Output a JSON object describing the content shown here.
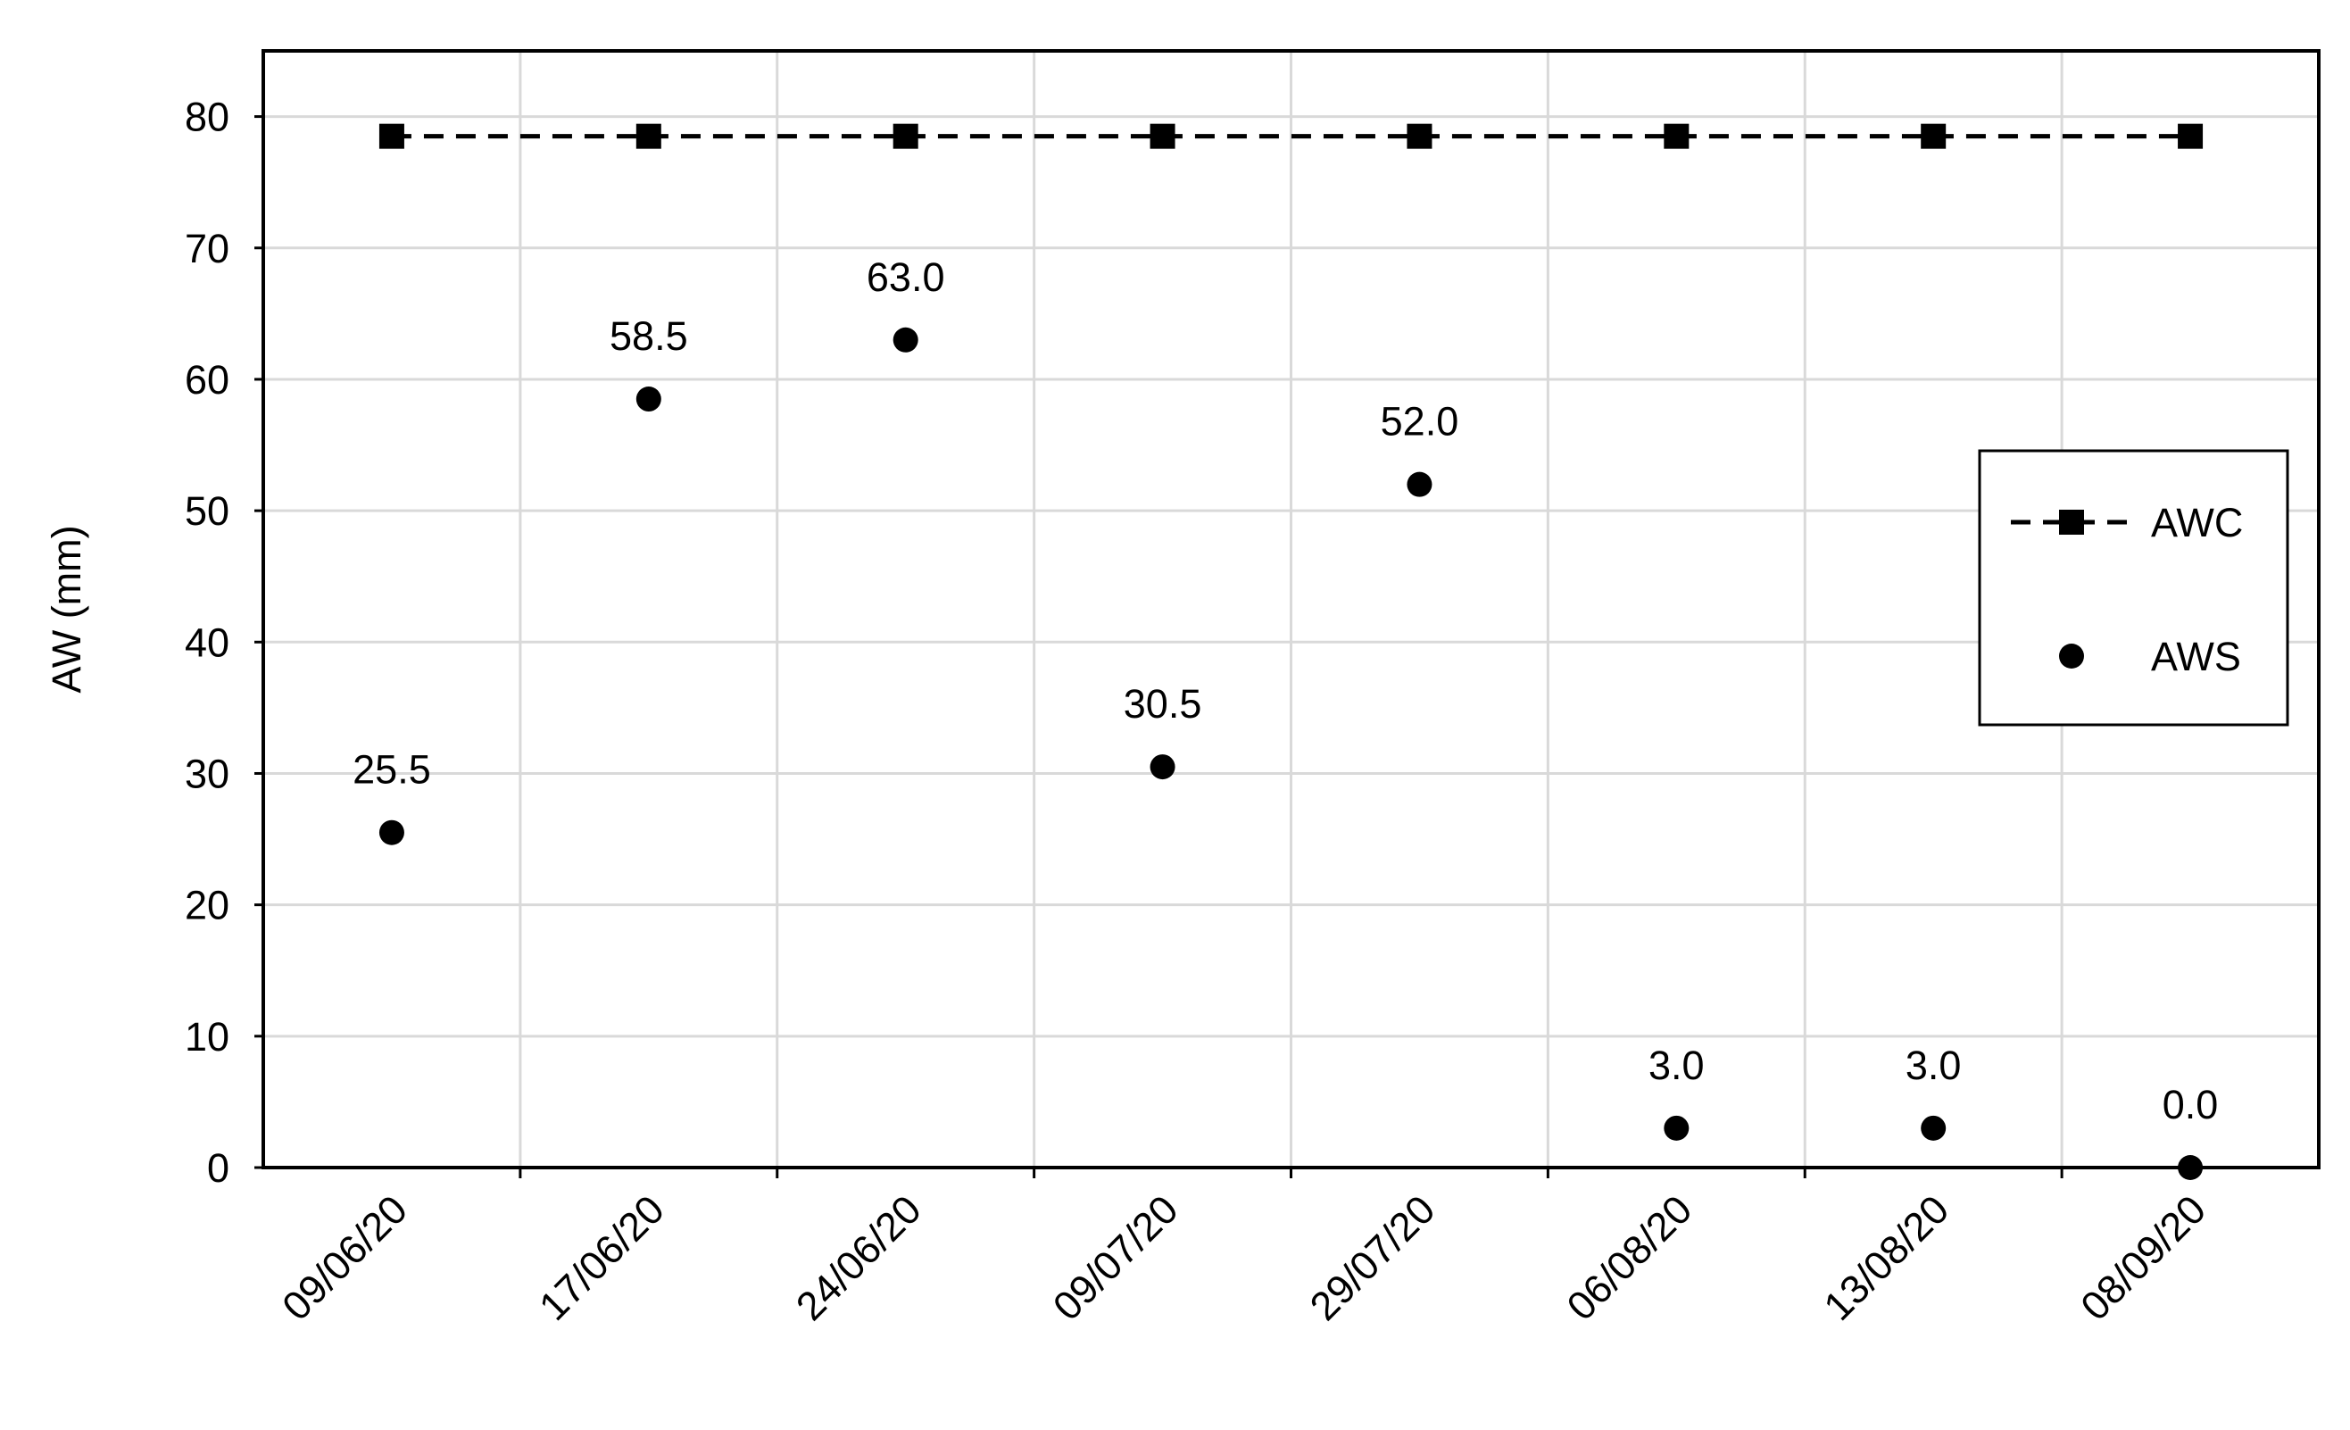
{
  "chart_data": {
    "type": "scatter",
    "title": "",
    "xlabel": "",
    "ylabel": "AW (mm)",
    "categories": [
      "09/06/20",
      "17/06/20",
      "24/06/20",
      "09/07/20",
      "29/07/20",
      "06/08/20",
      "13/08/20",
      "08/09/20"
    ],
    "ylim": [
      0,
      85
    ],
    "yticks": [
      0,
      10,
      20,
      30,
      40,
      50,
      60,
      70,
      80
    ],
    "ytick_labels": [
      "0",
      "10",
      "20",
      "30",
      "40",
      "50",
      "60",
      "70",
      "80"
    ],
    "grid": true,
    "legend_position": "right",
    "series": [
      {
        "name": "AWC",
        "values": [
          78.5,
          78.5,
          78.5,
          78.5,
          78.5,
          78.5,
          78.5,
          78.5
        ],
        "marker": "square",
        "line": "dashed",
        "color": "#000000"
      },
      {
        "name": "AWS",
        "values": [
          25.5,
          58.5,
          63.0,
          30.5,
          52.0,
          3.0,
          3.0,
          0.0
        ],
        "value_labels": [
          "25.5",
          "58.5",
          "63.0",
          "30.5",
          "52.0",
          "3.0",
          "3.0",
          "0.0"
        ],
        "marker": "circle",
        "line": "none",
        "color": "#000000"
      }
    ]
  },
  "colors": {
    "grid": "#d9d9d9",
    "axis": "#000000",
    "background": "#ffffff"
  }
}
